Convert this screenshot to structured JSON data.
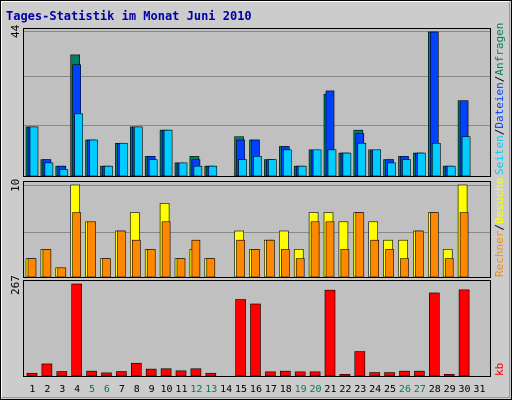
{
  "title": "Tages-Statistik im Monat Juni 2010",
  "colors": {
    "background": "#cccccc",
    "plot_bg": "#c0c0c0",
    "frame": "#e00000",
    "title": "#0000aa",
    "weekend_day": "#008040",
    "anfragen": "#008060",
    "dateien": "#0040ff",
    "seiten": "#00ccff",
    "besuche": "#ffff00",
    "rechner": "#ff8800",
    "kb": "#ff0000"
  },
  "chart_data": [
    {
      "type": "bar",
      "panel": "hits",
      "y_max_label": "44",
      "ylim": [
        0,
        44
      ],
      "categories": [
        "1",
        "2",
        "3",
        "4",
        "5",
        "6",
        "7",
        "8",
        "9",
        "10",
        "11",
        "12",
        "13",
        "14",
        "15",
        "16",
        "17",
        "18",
        "19",
        "20",
        "21",
        "22",
        "23",
        "24",
        "25",
        "26",
        "27",
        "28",
        "29",
        "30",
        "31"
      ],
      "weekend_days": [
        "5",
        "6",
        "12",
        "13",
        "19",
        "20",
        "26",
        "27"
      ],
      "series": [
        {
          "name": "Anfragen",
          "values": [
            15,
            5,
            3,
            37,
            11,
            3,
            10,
            15,
            6,
            14,
            4,
            6,
            3,
            0,
            12,
            11,
            5,
            9,
            3,
            8,
            25,
            7,
            14,
            8,
            5,
            6,
            7,
            44,
            3,
            23,
            0
          ]
        },
        {
          "name": "Dateien",
          "values": [
            15,
            5,
            3,
            34,
            11,
            3,
            10,
            15,
            6,
            14,
            4,
            5,
            3,
            0,
            11,
            11,
            5,
            9,
            3,
            8,
            26,
            7,
            13,
            8,
            5,
            6,
            7,
            44,
            3,
            23,
            0
          ]
        },
        {
          "name": "Seiten",
          "values": [
            15,
            4,
            2,
            19,
            11,
            3,
            10,
            15,
            5,
            14,
            4,
            3,
            3,
            0,
            5,
            6,
            5,
            8,
            3,
            8,
            8,
            7,
            10,
            8,
            4,
            5,
            7,
            10,
            3,
            12,
            0
          ]
        }
      ],
      "legend_labels": [
        "Anfragen",
        "/",
        "Dateien",
        "/",
        "Seiten",
        "/"
      ]
    },
    {
      "type": "bar",
      "panel": "visits",
      "y_max_label": "10",
      "ylim": [
        0,
        10
      ],
      "series": [
        {
          "name": "Besuche",
          "values": [
            2,
            3,
            1,
            10,
            6,
            2,
            5,
            7,
            3,
            8,
            2,
            3,
            2,
            0,
            5,
            3,
            4,
            5,
            3,
            7,
            7,
            6,
            7,
            6,
            4,
            4,
            5,
            7,
            3,
            10,
            0
          ]
        },
        {
          "name": "Rechner",
          "values": [
            2,
            3,
            1,
            7,
            6,
            2,
            5,
            4,
            3,
            6,
            2,
            4,
            2,
            0,
            4,
            3,
            4,
            3,
            2,
            6,
            6,
            3,
            7,
            4,
            3,
            2,
            5,
            7,
            2,
            7,
            0
          ]
        }
      ],
      "legend_labels": [
        "Besuche",
        "/",
        "Rechner"
      ]
    },
    {
      "type": "bar",
      "panel": "kb",
      "y_max_label": "267",
      "ylim": [
        0,
        267
      ],
      "series": [
        {
          "name": "kb",
          "values": [
            8,
            35,
            13,
            267,
            14,
            9,
            13,
            37,
            20,
            21,
            15,
            21,
            8,
            0,
            222,
            209,
            12,
            14,
            12,
            12,
            249,
            5,
            71,
            10,
            10,
            14,
            14,
            241,
            5,
            250,
            0
          ]
        }
      ],
      "legend_labels": [
        "kb"
      ]
    }
  ]
}
